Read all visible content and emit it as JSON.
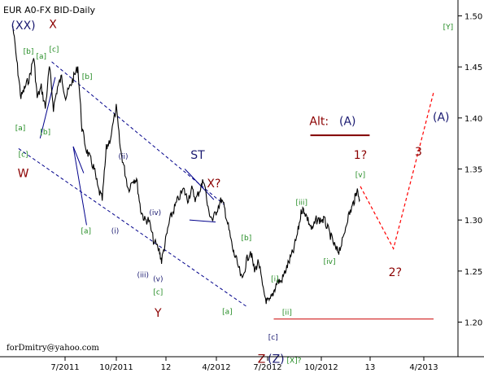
{
  "chart_data": {
    "type": "line",
    "title": "EUR A0-FX BID-Daily",
    "credit": "forDmitry@yahoo.com",
    "x_ticks": [
      "7/2011",
      "10/2011",
      "12",
      "4/2012",
      "7/2012",
      "10/2012",
      "13",
      "4/2013"
    ],
    "y_ticks": [
      "1.50",
      "1.45",
      "1.40",
      "1.35",
      "1.30",
      "1.25",
      "1.20"
    ],
    "ylim": [
      1.18,
      1.52
    ],
    "grid": false,
    "colors": {
      "price": "#000000",
      "channel": "#00008b",
      "wave_red": "#8b0000",
      "wave_green": "#228b22",
      "wave_navy": "#191970",
      "projection": "#ff0000",
      "support": "#cc0000",
      "alt_line": "#800000"
    },
    "price": {
      "x": [
        "2011-05-02",
        "2011-05-10",
        "2011-05-16",
        "2011-05-23",
        "2011-05-31",
        "2011-06-07",
        "2011-06-13",
        "2011-06-20",
        "2011-06-27",
        "2011-07-04",
        "2011-07-11",
        "2011-07-18",
        "2011-07-25",
        "2011-08-01",
        "2011-08-08",
        "2011-08-15",
        "2011-08-22",
        "2011-08-29",
        "2011-09-05",
        "2011-09-12",
        "2011-09-19",
        "2011-09-26",
        "2011-10-03",
        "2011-10-10",
        "2011-10-17",
        "2011-10-27",
        "2011-11-03",
        "2011-11-10",
        "2011-11-17",
        "2011-11-25",
        "2011-12-01",
        "2011-12-08",
        "2011-12-15",
        "2011-12-22",
        "2011-12-30",
        "2012-01-09",
        "2012-01-13",
        "2012-01-20",
        "2012-01-27",
        "2012-02-03",
        "2012-02-10",
        "2012-02-20",
        "2012-02-27",
        "2012-03-05",
        "2012-03-12",
        "2012-03-19",
        "2012-03-26",
        "2012-04-02",
        "2012-04-10",
        "2012-04-17",
        "2012-04-25",
        "2012-05-01",
        "2012-05-08",
        "2012-05-15",
        "2012-05-21",
        "2012-05-31",
        "2012-06-07",
        "2012-06-14",
        "2012-06-21",
        "2012-06-28",
        "2012-07-06",
        "2012-07-12",
        "2012-07-17",
        "2012-07-24",
        "2012-07-30",
        "2012-08-06",
        "2012-08-13",
        "2012-08-20",
        "2012-08-27",
        "2012-09-04",
        "2012-09-10",
        "2012-09-14",
        "2012-09-21",
        "2012-09-28",
        "2012-10-05",
        "2012-10-12",
        "2012-10-19",
        "2012-10-26",
        "2012-11-02",
        "2012-11-09",
        "2012-11-13",
        "2012-11-20",
        "2012-11-27",
        "2012-12-04",
        "2012-12-10",
        "2012-12-14",
        "2012-12-19"
      ],
      "y": [
        1.49,
        1.45,
        1.42,
        1.43,
        1.44,
        1.46,
        1.42,
        1.43,
        1.41,
        1.45,
        1.41,
        1.43,
        1.44,
        1.42,
        1.43,
        1.44,
        1.45,
        1.39,
        1.37,
        1.36,
        1.35,
        1.33,
        1.32,
        1.37,
        1.38,
        1.41,
        1.37,
        1.35,
        1.33,
        1.34,
        1.34,
        1.31,
        1.3,
        1.3,
        1.28,
        1.27,
        1.26,
        1.28,
        1.3,
        1.31,
        1.32,
        1.33,
        1.32,
        1.33,
        1.32,
        1.33,
        1.34,
        1.31,
        1.3,
        1.31,
        1.32,
        1.31,
        1.29,
        1.27,
        1.26,
        1.24,
        1.26,
        1.27,
        1.25,
        1.26,
        1.23,
        1.22,
        1.22,
        1.23,
        1.24,
        1.24,
        1.25,
        1.26,
        1.27,
        1.29,
        1.31,
        1.31,
        1.3,
        1.29,
        1.3,
        1.3,
        1.3,
        1.29,
        1.28,
        1.27,
        1.27,
        1.28,
        1.3,
        1.31,
        1.32,
        1.33,
        1.32
      ]
    },
    "labels": [
      {
        "text": "(XX)",
        "x": "2011-05-20",
        "y": 1.487,
        "color": "navy"
      },
      {
        "text": "X",
        "x": "2011-07-10",
        "y": 1.488,
        "color": "red"
      },
      {
        "text": "[Y]",
        "x": "2013-05-20",
        "y": 1.487,
        "color": "green"
      },
      {
        "text": "[b]",
        "x": "2011-05-29",
        "y": 1.463,
        "color": "green"
      },
      {
        "text": "[a]",
        "x": "2011-06-20",
        "y": 1.458,
        "color": "green"
      },
      {
        "text": "[c]",
        "x": "2011-07-12",
        "y": 1.465,
        "color": "green"
      },
      {
        "text": "[b]",
        "x": "2011-09-07",
        "y": 1.438,
        "color": "green"
      },
      {
        "text": "[a]",
        "x": "2011-05-15",
        "y": 1.388,
        "color": "green"
      },
      {
        "text": "[b]",
        "x": "2011-06-27",
        "y": 1.384,
        "color": "green"
      },
      {
        "text": "[c]",
        "x": "2011-05-20",
        "y": 1.362,
        "color": "green"
      },
      {
        "text": "W",
        "x": "2011-05-20",
        "y": 1.342,
        "color": "red"
      },
      {
        "text": "(ii)",
        "x": "2011-11-08",
        "y": 1.36,
        "color": "navy"
      },
      {
        "text": "ST",
        "x": "2012-03-15",
        "y": 1.36,
        "color": "navy"
      },
      {
        "text": "X?",
        "x": "2012-04-12",
        "y": 1.332,
        "color": "red"
      },
      {
        "text": "(iv)",
        "x": "2012-01-02",
        "y": 1.305,
        "color": "navy"
      },
      {
        "text": "[a]",
        "x": "2011-09-05",
        "y": 1.287,
        "color": "green"
      },
      {
        "text": "(i)",
        "x": "2011-10-25",
        "y": 1.287,
        "color": "navy"
      },
      {
        "text": "(iii)",
        "x": "2011-12-12",
        "y": 1.244,
        "color": "navy"
      },
      {
        "text": "(v)",
        "x": "2012-01-07",
        "y": 1.24,
        "color": "navy"
      },
      {
        "text": "[c]",
        "x": "2012-01-07",
        "y": 1.227,
        "color": "green"
      },
      {
        "text": "Y",
        "x": "2012-01-07",
        "y": 1.205,
        "color": "red"
      },
      {
        "text": "[b]",
        "x": "2012-06-07",
        "y": 1.28,
        "color": "green"
      },
      {
        "text": "[a]",
        "x": "2012-05-05",
        "y": 1.208,
        "color": "green"
      },
      {
        "text": "[i]",
        "x": "2012-07-26",
        "y": 1.24,
        "color": "green"
      },
      {
        "text": "[ii]",
        "x": "2012-08-16",
        "y": 1.207,
        "color": "green"
      },
      {
        "text": "[c]",
        "x": "2012-07-23",
        "y": 1.183,
        "color": "navy"
      },
      {
        "text": "[iii]",
        "x": "2012-09-10",
        "y": 1.315,
        "color": "green"
      },
      {
        "text": "[iv]",
        "x": "2012-10-28",
        "y": 1.257,
        "color": "green"
      },
      {
        "text": "[v]",
        "x": "2012-12-20",
        "y": 1.342,
        "color": "green"
      },
      {
        "text": "1?",
        "x": "2012-12-20",
        "y": 1.36,
        "color": "red"
      },
      {
        "text": "2?",
        "x": "2013-02-18",
        "y": 1.245,
        "color": "red"
      },
      {
        "text": "3",
        "x": "2013-03-30",
        "y": 1.363,
        "color": "red"
      },
      {
        "text": "(A)",
        "x": "2013-05-08",
        "y": 1.397,
        "color": "navy"
      },
      {
        "text": "Alt:",
        "x": "2012-10-10",
        "y": 1.393,
        "color": "red"
      },
      {
        "text": "(A)",
        "x": "2012-11-28",
        "y": 1.393,
        "color": "navy"
      },
      {
        "text": "Z",
        "x": "2012-07-03",
        "y": 1.16,
        "color": "red"
      },
      {
        "text": "(Z)",
        "x": "2012-07-28",
        "y": 1.16,
        "color": "navy"
      },
      {
        "text": "[X]?",
        "x": "2012-08-28",
        "y": 1.16,
        "color": "green"
      }
    ],
    "channel_lines": [
      {
        "x": [
          "2011-07-08",
          "2012-04-30"
        ],
        "y": [
          1.455,
          1.315
        ]
      },
      {
        "x": [
          "2011-05-12",
          "2012-06-08"
        ],
        "y": [
          1.37,
          1.215
        ]
      }
    ],
    "triangle_lines": [
      {
        "x": [
          "2011-06-18",
          "2011-07-14"
        ],
        "y": [
          1.38,
          1.44
        ]
      },
      {
        "x": [
          "2011-08-14",
          "2011-09-01"
        ],
        "y": [
          1.372,
          1.346
        ]
      },
      {
        "x": [
          "2011-08-14",
          "2011-09-06"
        ],
        "y": [
          1.372,
          1.295
        ]
      },
      {
        "x": [
          "2012-02-22",
          "2012-04-12"
        ],
        "y": [
          1.35,
          1.32
        ]
      },
      {
        "x": [
          "2012-03-01",
          "2012-04-15"
        ],
        "y": [
          1.3,
          1.298
        ]
      }
    ],
    "support_line": {
      "x": [
        "2012-07-24",
        "2013-04-25"
      ],
      "y": [
        1.203,
        1.203
      ]
    },
    "alt_line": {
      "x": [
        "2012-09-25",
        "2013-01-05"
      ],
      "y": [
        1.383,
        1.383
      ]
    },
    "projection": {
      "x": [
        "2012-12-20",
        "2013-02-15",
        "2013-04-25"
      ],
      "y": [
        1.333,
        1.272,
        1.425
      ]
    }
  }
}
